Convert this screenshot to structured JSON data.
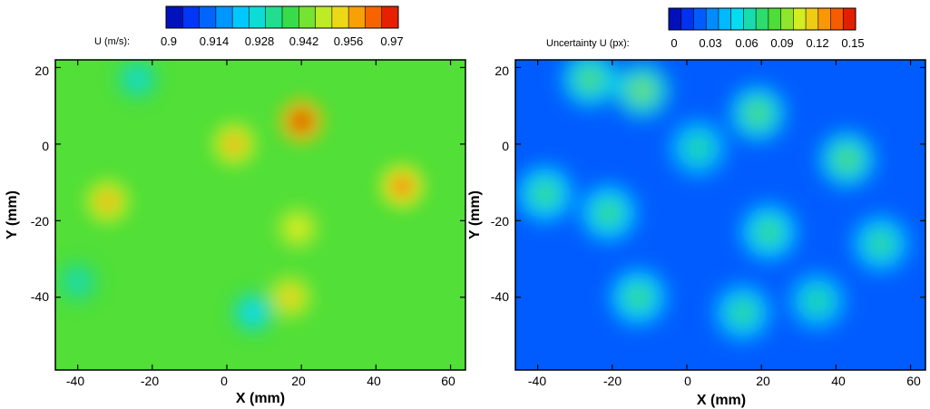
{
  "chart_data": [
    {
      "type": "heatmap",
      "colorbar": {
        "label": "U (m/s):",
        "ticks": [
          "0.9",
          "0.914",
          "0.928",
          "0.942",
          "0.956",
          "0.97"
        ],
        "range": [
          0.9,
          0.97
        ],
        "levels": 14
      },
      "xlabel": "X (mm)",
      "ylabel": "Y (mm)",
      "xlim": [
        -46,
        64
      ],
      "ylim": [
        -59,
        22
      ],
      "xticks": [
        "-40",
        "-20",
        "0",
        "20",
        "40",
        "60"
      ],
      "yticks": [
        "20",
        "0",
        "-20",
        "-40"
      ],
      "background_value": 0.94,
      "features": [
        {
          "x": 20,
          "y": 6,
          "value": 0.97
        },
        {
          "x": 47,
          "y": -11,
          "value": 0.962
        },
        {
          "x": 2,
          "y": 0,
          "value": 0.956
        },
        {
          "x": -32,
          "y": -15,
          "value": 0.956
        },
        {
          "x": 17,
          "y": -40,
          "value": 0.953
        },
        {
          "x": 19,
          "y": -22,
          "value": 0.95
        },
        {
          "x": -24,
          "y": 17,
          "value": 0.928
        },
        {
          "x": 7,
          "y": -44,
          "value": 0.925
        },
        {
          "x": -40,
          "y": -36,
          "value": 0.93
        }
      ]
    },
    {
      "type": "heatmap",
      "colorbar": {
        "label": "Uncertainty U (px):",
        "ticks": [
          "0",
          "0.03",
          "0.06",
          "0.09",
          "0.12",
          "0.15"
        ],
        "range": [
          0,
          0.15
        ],
        "levels": 15
      },
      "xlabel": "X (mm)",
      "ylabel": "Y (mm)",
      "xlim": [
        -46,
        64
      ],
      "ylim": [
        -59,
        22
      ],
      "xticks": [
        "-40",
        "-20",
        "0",
        "20",
        "40",
        "60"
      ],
      "yticks": [
        "20",
        "0",
        "-20",
        "-40"
      ],
      "background_value": 0.025,
      "features": [
        {
          "x": -26,
          "y": 17,
          "value": 0.085
        },
        {
          "x": -12,
          "y": 14,
          "value": 0.09
        },
        {
          "x": 19,
          "y": 8,
          "value": 0.085
        },
        {
          "x": 43,
          "y": -4,
          "value": 0.085
        },
        {
          "x": -38,
          "y": -13,
          "value": 0.08
        },
        {
          "x": -21,
          "y": -18,
          "value": 0.08
        },
        {
          "x": 22,
          "y": -23,
          "value": 0.08
        },
        {
          "x": 52,
          "y": -26,
          "value": 0.075
        },
        {
          "x": -13,
          "y": -40,
          "value": 0.08
        },
        {
          "x": 15,
          "y": -44,
          "value": 0.075
        },
        {
          "x": 35,
          "y": -41,
          "value": 0.07
        },
        {
          "x": 3,
          "y": -1,
          "value": 0.07
        }
      ]
    }
  ]
}
